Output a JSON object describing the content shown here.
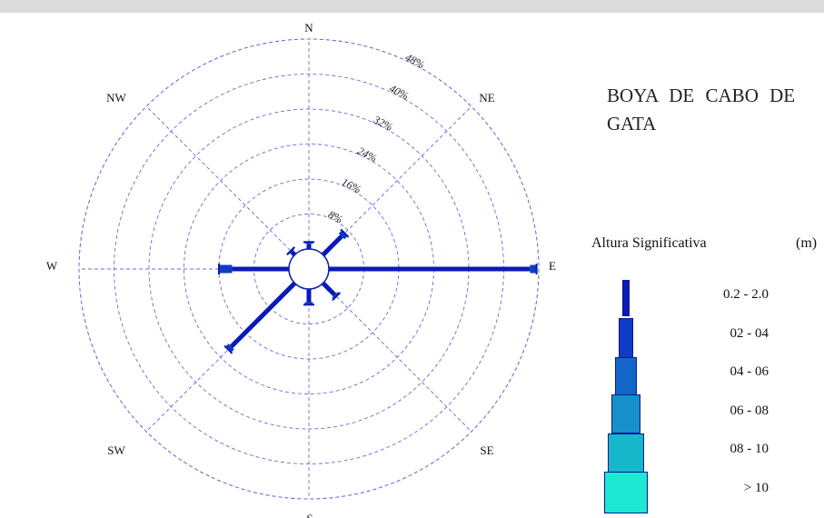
{
  "chart_data": {
    "type": "wave-rose",
    "title": "BOYA DE CABO DE GATA",
    "directions": [
      "N",
      "NE",
      "E",
      "SE",
      "S",
      "SW",
      "W",
      "NW"
    ],
    "radial_ticks": [
      "8%",
      "16%",
      "24%",
      "32%",
      "40%",
      "48%"
    ],
    "radial_max": 48,
    "legend_title": "Altura Significativa",
    "legend_unit": "(m)",
    "legend": [
      {
        "label": "0.2 - 2.0",
        "color": "#0a1ab8"
      },
      {
        "label": "02 - 04",
        "color": "#0e3cc4"
      },
      {
        "label": "04 - 06",
        "color": "#1266c8"
      },
      {
        "label": "06 - 08",
        "color": "#1590c8"
      },
      {
        "label": "08 - 10",
        "color": "#17b8cc"
      },
      {
        "label": "> 10",
        "color": "#1ee8d4"
      }
    ],
    "series": [
      {
        "direction": "N",
        "values": [
          1.2,
          0.4,
          0,
          0,
          0,
          0
        ]
      },
      {
        "direction": "NE",
        "values": [
          6.0,
          1.0,
          0,
          0,
          0,
          0
        ]
      },
      {
        "direction": "E",
        "values": [
          46.0,
          1.5,
          0,
          0,
          0,
          0
        ]
      },
      {
        "direction": "SE",
        "values": [
          3.8,
          0.5,
          0,
          0,
          0,
          0
        ]
      },
      {
        "direction": "S",
        "values": [
          3.0,
          0.6,
          0,
          0,
          0,
          0
        ]
      },
      {
        "direction": "SW",
        "values": [
          20.5,
          1.0,
          0,
          0,
          0,
          0
        ]
      },
      {
        "direction": "W",
        "values": [
          13.0,
          3.0,
          0,
          0,
          0,
          0
        ]
      },
      {
        "direction": "NW",
        "values": [
          1.0,
          0.3,
          0,
          0,
          0,
          0
        ]
      }
    ]
  }
}
